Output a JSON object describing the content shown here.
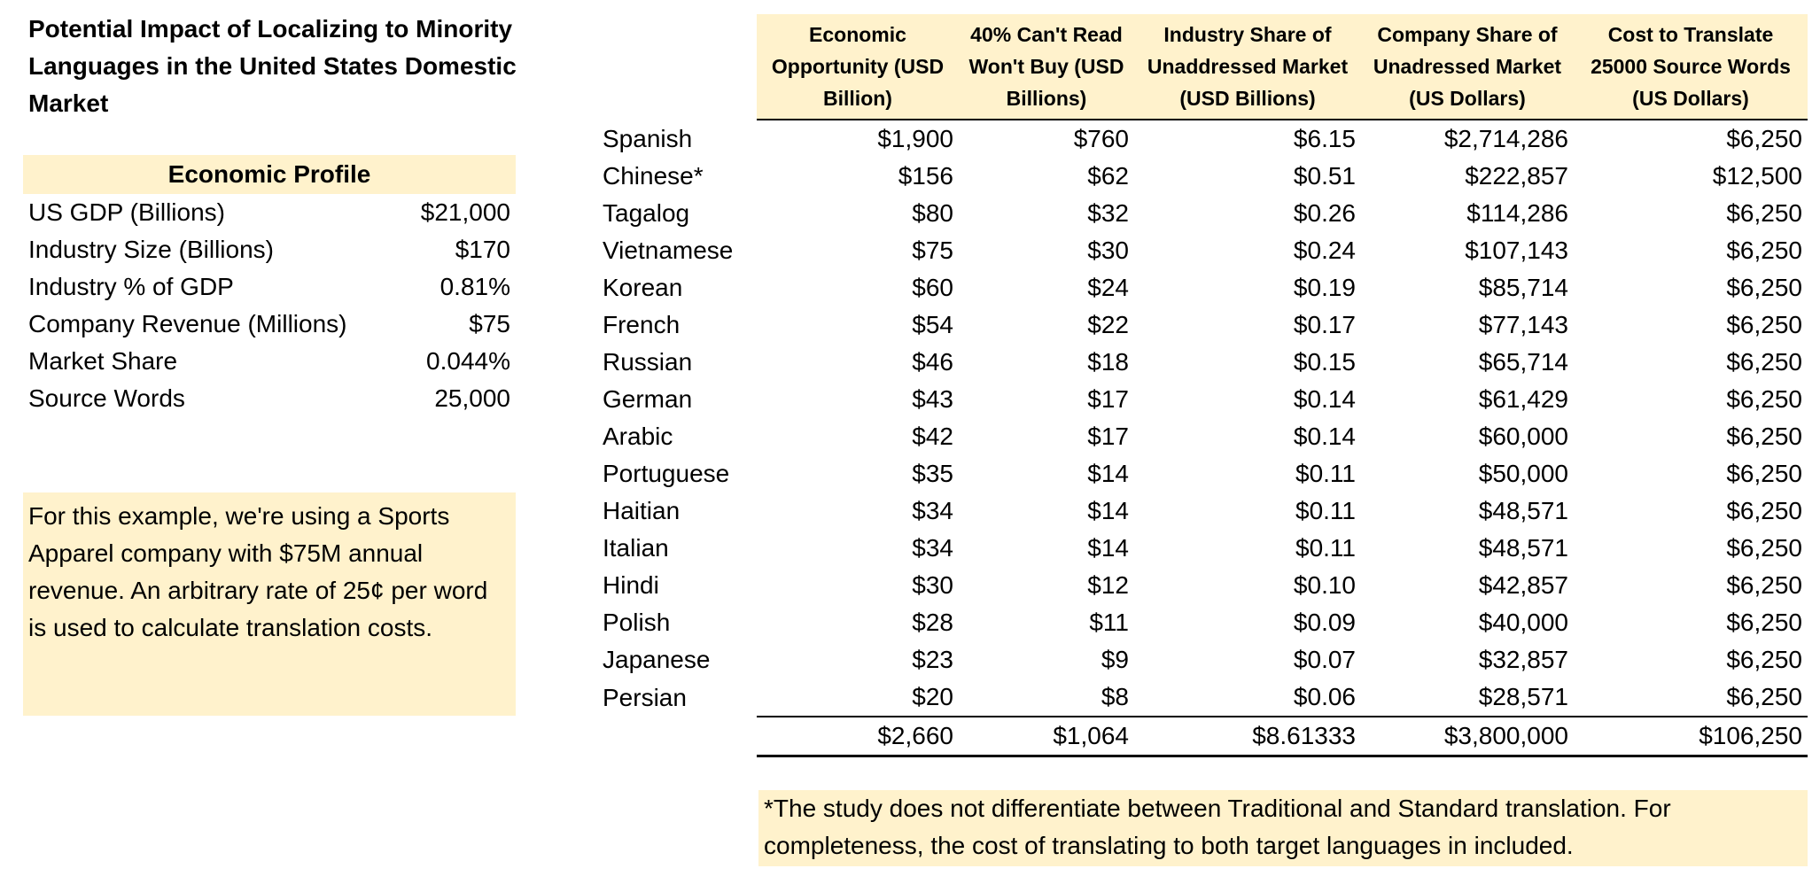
{
  "title": "Potential Impact of Localizing to Minority Languages in the United States Domestic Market",
  "economic_profile": {
    "header": "Economic Profile",
    "rows": [
      {
        "label": "US GDP (Billions)",
        "value": "$21,000"
      },
      {
        "label": "Industry Size (Billions)",
        "value": "$170"
      },
      {
        "label": "Industry % of GDP",
        "value": "0.81%"
      },
      {
        "label": "Company Revenue (Millions)",
        "value": "$75"
      },
      {
        "label": "Market Share",
        "value": "0.044%"
      },
      {
        "label": "Source Words",
        "value": "25,000"
      }
    ]
  },
  "example_note": "For this example, we're using a Sports Apparel company with $75M annual revenue.  An arbitrary rate of 25¢ per word is used to calculate translation costs.",
  "table": {
    "headers": [
      "Economic Opportunity (USD Billion)",
      "40% Can't Read Won't Buy (USD Billions)",
      "Industry Share of Unaddressed Market (USD Billions)",
      "Company Share of Unadressed Market (US Dollars)",
      "Cost to Translate 25000 Source Words (US Dollars)"
    ],
    "rows": [
      {
        "language": "Spanish",
        "values": [
          "$1,900",
          "$760",
          "$6.15",
          "$2,714,286",
          "$6,250"
        ]
      },
      {
        "language": "Chinese*",
        "values": [
          "$156",
          "$62",
          "$0.51",
          "$222,857",
          "$12,500"
        ]
      },
      {
        "language": "Tagalog",
        "values": [
          "$80",
          "$32",
          "$0.26",
          "$114,286",
          "$6,250"
        ]
      },
      {
        "language": "Vietnamese",
        "values": [
          "$75",
          "$30",
          "$0.24",
          "$107,143",
          "$6,250"
        ]
      },
      {
        "language": "Korean",
        "values": [
          "$60",
          "$24",
          "$0.19",
          "$85,714",
          "$6,250"
        ]
      },
      {
        "language": "French",
        "values": [
          "$54",
          "$22",
          "$0.17",
          "$77,143",
          "$6,250"
        ]
      },
      {
        "language": "Russian",
        "values": [
          "$46",
          "$18",
          "$0.15",
          "$65,714",
          "$6,250"
        ]
      },
      {
        "language": "German",
        "values": [
          "$43",
          "$17",
          "$0.14",
          "$61,429",
          "$6,250"
        ]
      },
      {
        "language": "Arabic",
        "values": [
          "$42",
          "$17",
          "$0.14",
          "$60,000",
          "$6,250"
        ]
      },
      {
        "language": "Portuguese",
        "values": [
          "$35",
          "$14",
          "$0.11",
          "$50,000",
          "$6,250"
        ]
      },
      {
        "language": "Haitian",
        "values": [
          "$34",
          "$14",
          "$0.11",
          "$48,571",
          "$6,250"
        ]
      },
      {
        "language": "Italian",
        "values": [
          "$34",
          "$14",
          "$0.11",
          "$48,571",
          "$6,250"
        ]
      },
      {
        "language": "Hindi",
        "values": [
          "$30",
          "$12",
          "$0.10",
          "$42,857",
          "$6,250"
        ]
      },
      {
        "language": "Polish",
        "values": [
          "$28",
          "$11",
          "$0.09",
          "$40,000",
          "$6,250"
        ]
      },
      {
        "language": "Japanese",
        "values": [
          "$23",
          "$9",
          "$0.07",
          "$32,857",
          "$6,250"
        ]
      },
      {
        "language": "Persian",
        "values": [
          "$20",
          "$8",
          "$0.06",
          "$28,571",
          "$6,250"
        ]
      }
    ],
    "totals": [
      "$2,660",
      "$1,064",
      "$8.61333",
      "$3,800,000",
      "$106,250"
    ]
  },
  "footnote": "*The study does not differentiate between Traditional and Standard translation.  For completeness, the cost of translating to both target languages in included.",
  "colors": {
    "highlight": "#fff2cc",
    "rule": "#000000"
  }
}
